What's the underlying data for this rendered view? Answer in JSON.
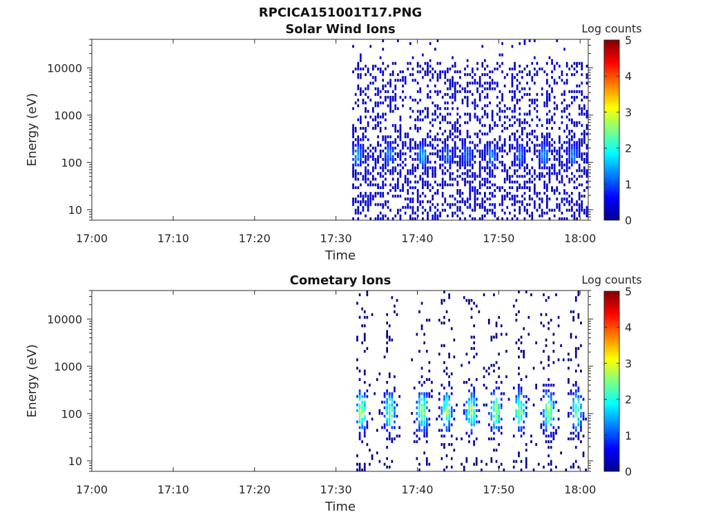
{
  "figure_title": "RPCICA151001T17.PNG",
  "chart_data": [
    {
      "type": "heatmap",
      "title": "Solar Wind Ions",
      "xlabel": "Time",
      "ylabel": "Energy (eV)",
      "xlim": [
        "17:00",
        "18:01"
      ],
      "xticks": [
        "17:00",
        "17:10",
        "17:20",
        "17:30",
        "17:40",
        "17:50",
        "18:00"
      ],
      "yscale": "log",
      "ylim": [
        6,
        40000
      ],
      "yticks": [
        "10",
        "100",
        "1000",
        "10000"
      ],
      "colorbar": {
        "label": "Log counts",
        "range": [
          0,
          5
        ],
        "ticks": [
          "0",
          "1",
          "2",
          "3",
          "4",
          "5"
        ],
        "colormap": "jet"
      },
      "data_start": "17:32",
      "data_end": "18:01",
      "bursts": [
        {
          "time": "17:32.5",
          "peak_log_counts": 1.5
        },
        {
          "time": "17:36.5",
          "peak_log_counts": 1.3
        },
        {
          "time": "17:40.5",
          "peak_log_counts": 1.6
        },
        {
          "time": "17:43.5",
          "peak_log_counts": 1.2
        },
        {
          "time": "17:46",
          "peak_log_counts": 1.2
        },
        {
          "time": "17:49",
          "peak_log_counts": 1.3
        },
        {
          "time": "17:52.5",
          "peak_log_counts": 1.2
        },
        {
          "time": "17:55.5",
          "peak_log_counts": 1.5
        },
        {
          "time": "17:59",
          "peak_log_counts": 1.3
        }
      ]
    },
    {
      "type": "heatmap",
      "title": "Cometary Ions",
      "xlabel": "Time",
      "ylabel": "Energy (eV)",
      "xlim": [
        "17:00",
        "18:01"
      ],
      "xticks": [
        "17:00",
        "17:10",
        "17:20",
        "17:30",
        "17:40",
        "17:50",
        "18:00"
      ],
      "yscale": "log",
      "ylim": [
        6,
        40000
      ],
      "yticks": [
        "10",
        "100",
        "1000",
        "10000"
      ],
      "colorbar": {
        "label": "Log counts",
        "range": [
          0,
          5
        ],
        "ticks": [
          "0",
          "1",
          "2",
          "3",
          "4",
          "5"
        ],
        "colormap": "jet"
      },
      "data_start": "17:32.5",
      "data_end": "18:01",
      "bursts": [
        {
          "time": "17:33",
          "peak_log_counts": 2.8
        },
        {
          "time": "17:36.5",
          "peak_log_counts": 2.6
        },
        {
          "time": "17:40.5",
          "peak_log_counts": 2.9
        },
        {
          "time": "17:43.5",
          "peak_log_counts": 2.6
        },
        {
          "time": "17:46.5",
          "peak_log_counts": 2.7
        },
        {
          "time": "17:49.5",
          "peak_log_counts": 2.8
        },
        {
          "time": "17:52.5",
          "peak_log_counts": 2.6
        },
        {
          "time": "17:56",
          "peak_log_counts": 2.8
        },
        {
          "time": "17:59.5",
          "peak_log_counts": 2.5
        }
      ]
    }
  ]
}
